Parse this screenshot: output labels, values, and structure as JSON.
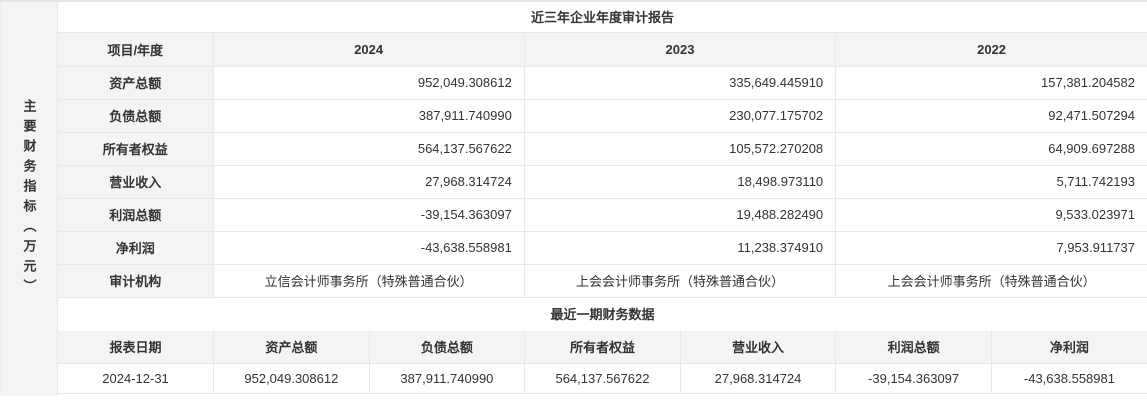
{
  "page": {
    "side_label": "主要财务指标（万元）",
    "section1_title": "近三年企业年度审计报告",
    "section2_title": "最近一期财务数据"
  },
  "colors": {
    "header_bg": "#f4f4f4",
    "border": "#e8e8e8",
    "text": "#333333"
  },
  "audit_table": {
    "header": [
      "项目/年度",
      "2024",
      "2023",
      "2022"
    ],
    "rows": [
      {
        "label": "资产总额",
        "values": [
          "952,049.308612",
          "335,649.445910",
          "157,381.204582"
        ]
      },
      {
        "label": "负债总额",
        "values": [
          "387,911.740990",
          "230,077.175702",
          "92,471.507294"
        ]
      },
      {
        "label": "所有者权益",
        "values": [
          "564,137.567622",
          "105,572.270208",
          "64,909.697288"
        ]
      },
      {
        "label": "营业收入",
        "values": [
          "27,968.314724",
          "18,498.973110",
          "5,711.742193"
        ]
      },
      {
        "label": "利润总额",
        "values": [
          "-39,154.363097",
          "19,488.282490",
          "9,533.023971"
        ]
      },
      {
        "label": "净利润",
        "values": [
          "-43,638.558981",
          "11,238.374910",
          "7,953.911737"
        ]
      },
      {
        "label": "审计机构",
        "values": [
          "立信会计师事务所（特殊普通合伙）",
          "上会会计师事务所（特殊普通合伙）",
          "上会会计师事务所（特殊普通合伙）"
        ]
      }
    ]
  },
  "latest_table": {
    "header": [
      "报表日期",
      "资产总额",
      "负债总额",
      "所有者权益",
      "营业收入",
      "利润总额",
      "净利润"
    ],
    "row": [
      "2024-12-31",
      "952,049.308612",
      "387,911.740990",
      "564,137.567622",
      "27,968.314724",
      "-39,154.363097",
      "-43,638.558981"
    ]
  }
}
